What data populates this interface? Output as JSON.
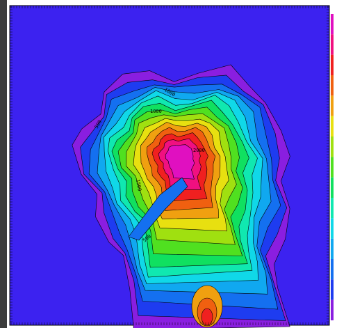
{
  "contour_labels": [
    "1000",
    "500",
    "1500",
    "2000",
    "500",
    "1000"
  ]
}
